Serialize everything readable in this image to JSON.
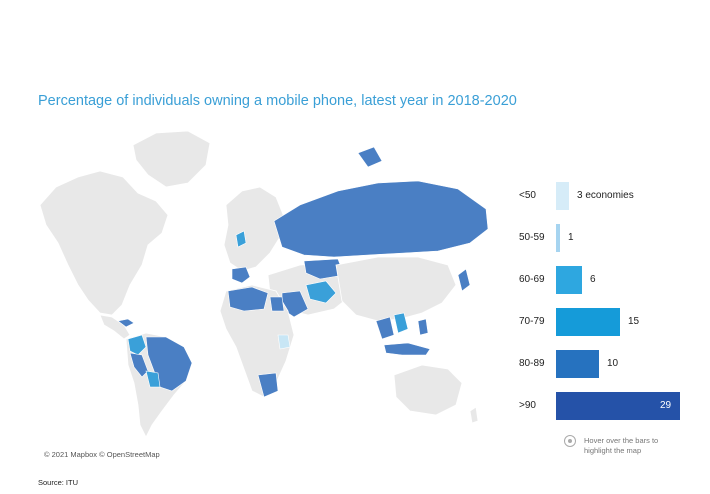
{
  "title": "Percentage of individuals owning a mobile phone, latest year in 2018-2020",
  "attribution": "© 2021 Mapbox © OpenStreetMap",
  "source": "Source: ITU",
  "hint": {
    "icon": "pointer-icon",
    "text_line1": "Hover over the bars to",
    "text_line2": "highlight the map"
  },
  "colors": {
    "land_default": "#e8e8e8",
    "country_border": "#ffffff",
    "map_highlight": "#4a7fc4",
    "map_highlight_light": "#3aa0d9",
    "map_highlight_pale": "#c8e6f5"
  },
  "chart_data": {
    "type": "bar",
    "orientation": "horizontal",
    "categories": [
      {
        "label": "<50",
        "value": 3,
        "value_label": "3  economies",
        "color": "#d6ecf8"
      },
      {
        "label": "50-59",
        "value": 1,
        "value_label": "1",
        "color": "#a6d4f0"
      },
      {
        "label": "60-69",
        "value": 6,
        "value_label": "6",
        "color": "#2ea7e0"
      },
      {
        "label": "70-79",
        "value": 15,
        "value_label": "15",
        "color": "#159bd9"
      },
      {
        "label": "80-89",
        "value": 10,
        "value_label": "10",
        "color": "#2672bf"
      },
      {
        "label": ">90",
        "value": 29,
        "value_label": "29",
        "color": "#2552a8"
      }
    ],
    "xlim": [
      0,
      29
    ]
  }
}
